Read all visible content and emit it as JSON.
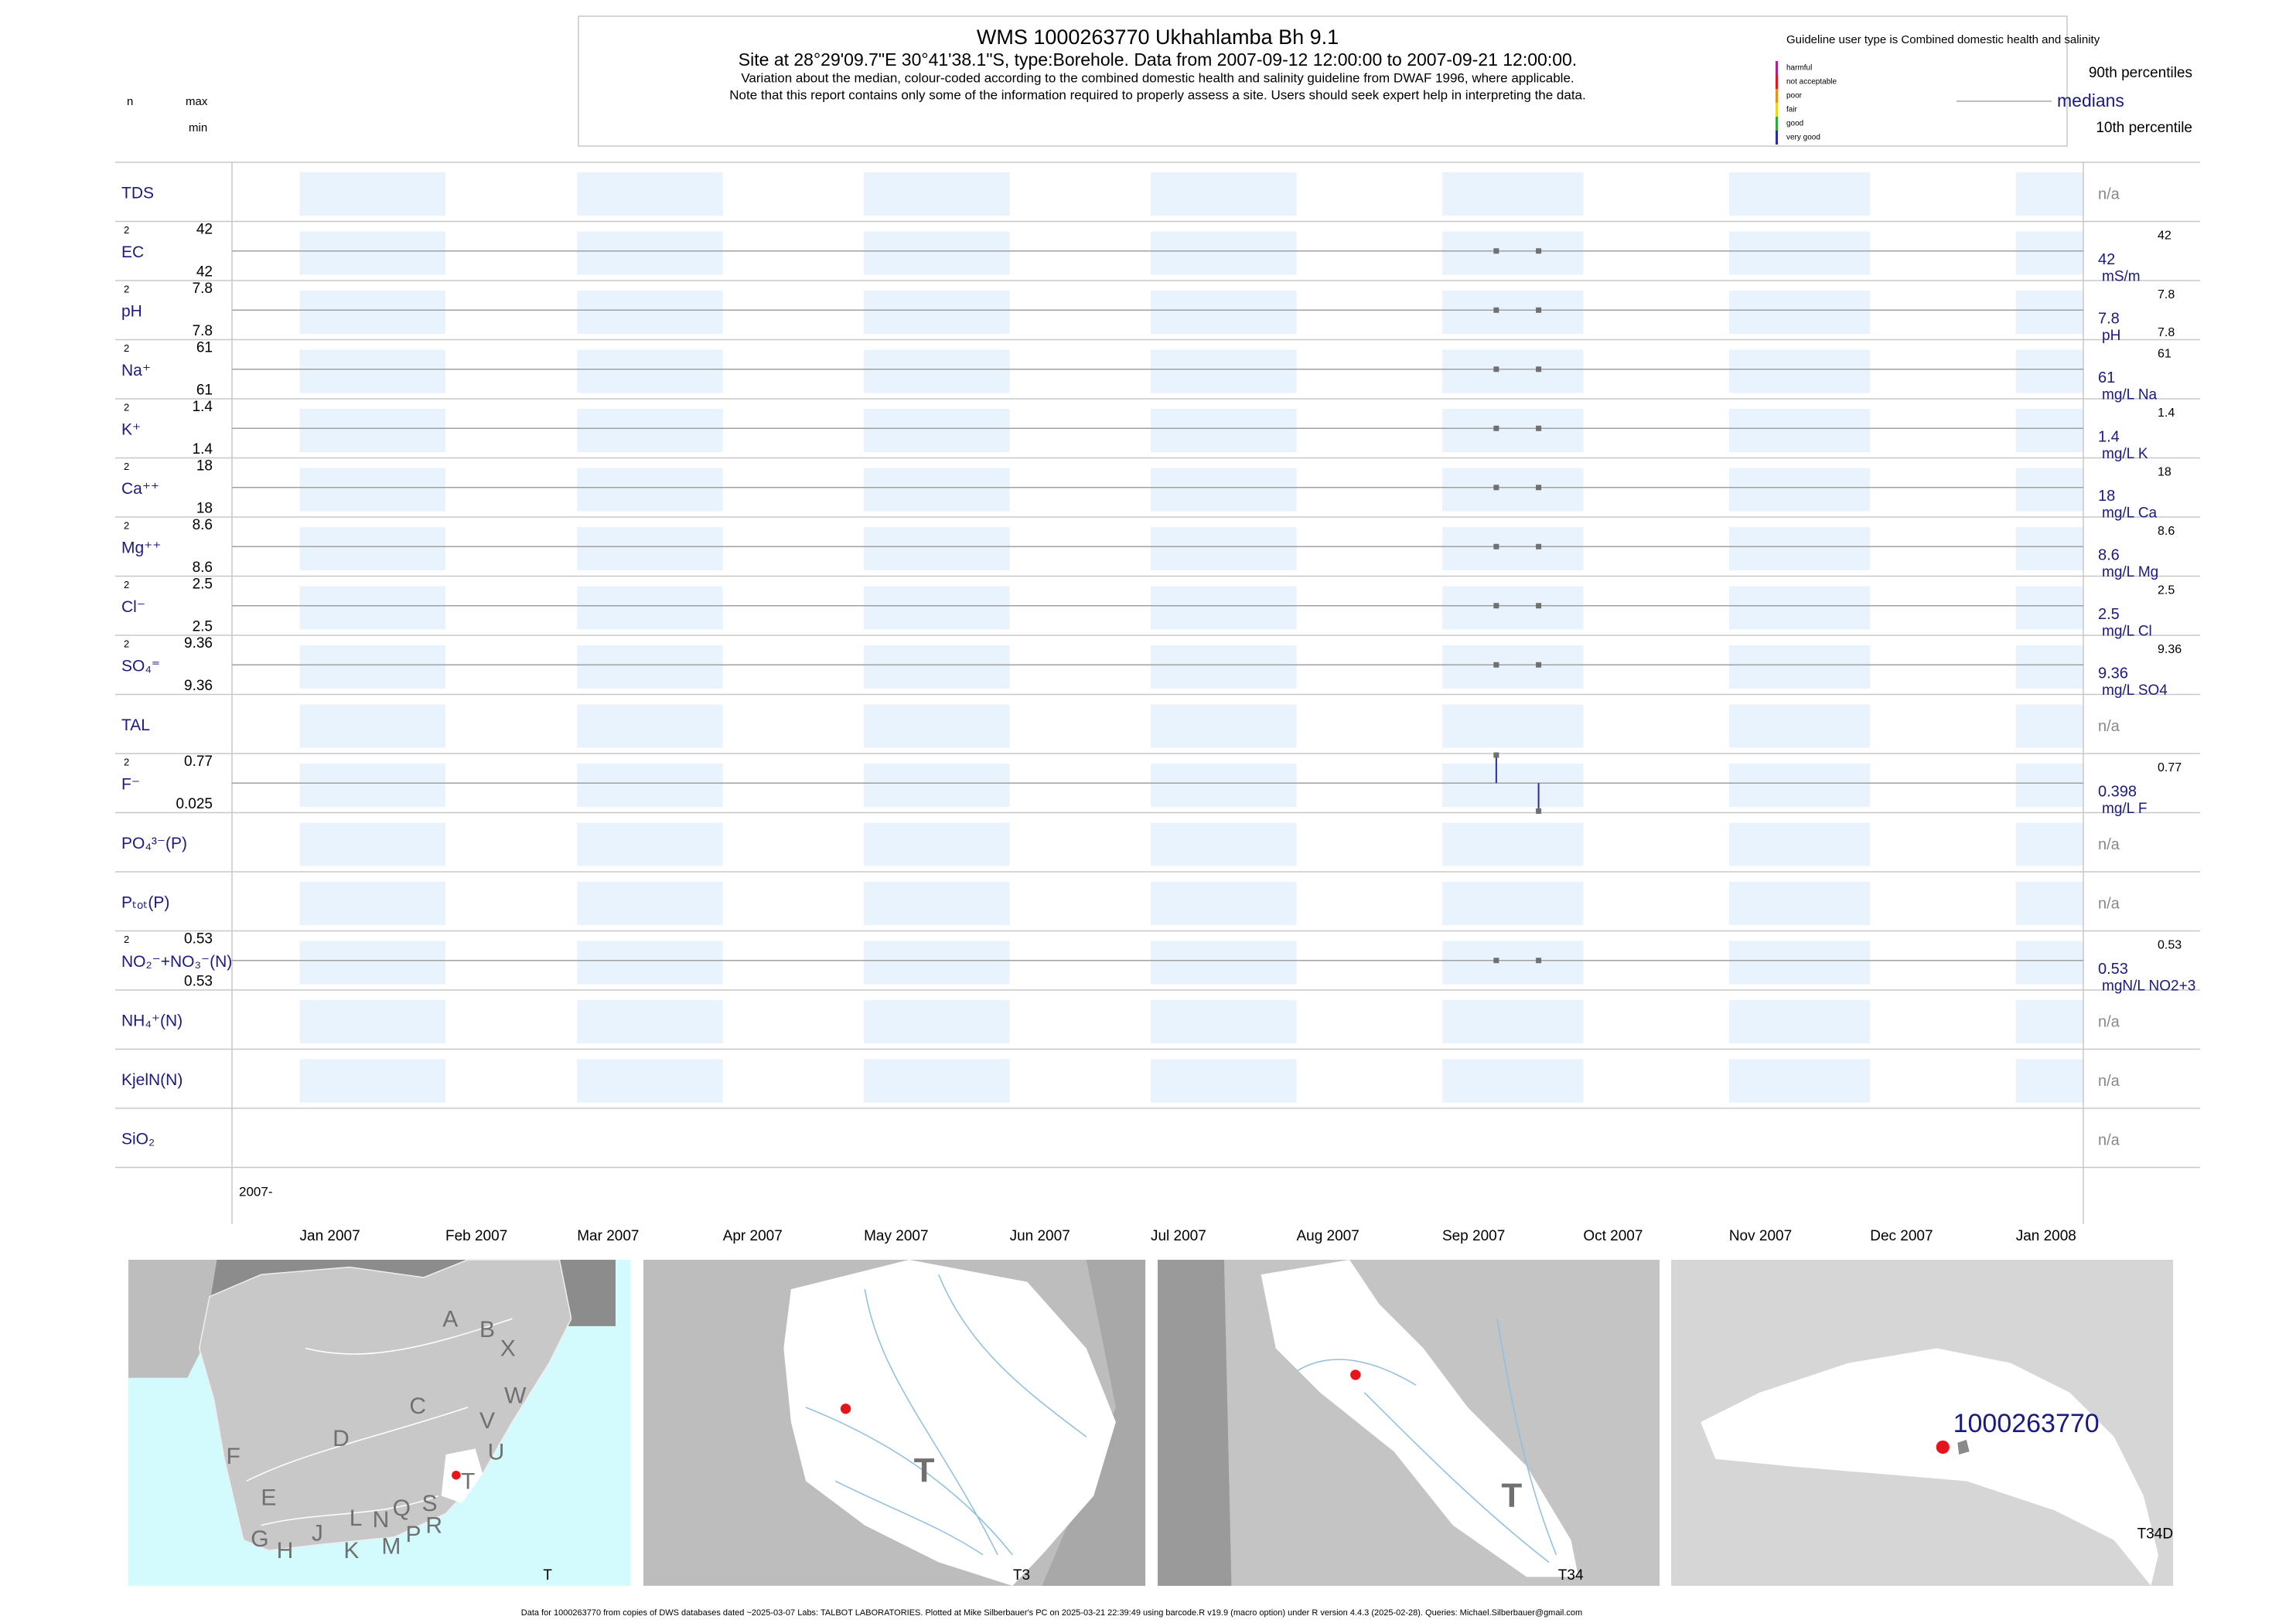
{
  "header": {
    "title": "WMS 1000263770  Ukhahlamba Bh 9.1",
    "subtitle": "Site at 28°29'09.7\"E 30°41'38.1\"S, type:Borehole.  Data from 2007-09-12 12:00:00 to 2007-09-21 12:00:00.",
    "note1": "Variation about the median,  colour-coded according to the combined domestic health and salinity guideline from DWAF 1996, where applicable.",
    "note2": "Note that this report contains only some of the information required to properly assess a site. Users should seek expert help in interpreting the data."
  },
  "column_heads": {
    "n": "n",
    "max": "max",
    "min": "min"
  },
  "legend": {
    "title": "Guideline user type is Combined domestic health and salinity",
    "classes": [
      {
        "label": "harmful",
        "color": "#b01f8e"
      },
      {
        "label": "not acceptable",
        "color": "#e8141c"
      },
      {
        "label": "poor",
        "color": "#f28b1a"
      },
      {
        "label": "fair",
        "color": "#e8d81a"
      },
      {
        "label": "good",
        "color": "#2ea83a"
      },
      {
        "label": "very good",
        "color": "#2b2ba0"
      }
    ],
    "p90": "90th percentiles",
    "median": "medians",
    "p10": "10th percentile"
  },
  "chart_data": {
    "type": "strip",
    "samples": [
      "2007-09-12 12:00:00",
      "2007-09-21 12:00:00"
    ],
    "xstart": "2007-",
    "xticks": [
      "Jan 2007",
      "Feb 2007",
      "Mar 2007",
      "Apr 2007",
      "May 2007",
      "Jun 2007",
      "Jul 2007",
      "Aug 2007",
      "Sep 2007",
      "Oct 2007",
      "Nov 2007",
      "Dec 2007",
      "Jan 2008"
    ],
    "rows": [
      {
        "name": "TDS",
        "status": "n/a"
      },
      {
        "name": "EC",
        "n": 2,
        "max": 42,
        "min": 42,
        "values": [
          42,
          42
        ],
        "median": 42,
        "unit": "mS/m",
        "p90": 42
      },
      {
        "name": "pH",
        "n": 2,
        "max": 7.8,
        "min": 7.8,
        "values": [
          7.8,
          7.8
        ],
        "median": 7.8,
        "unit": "pH",
        "p90": 7.8,
        "p10": 7.8
      },
      {
        "name": "Na⁺",
        "n": 2,
        "max": 61,
        "min": 61,
        "values": [
          61,
          61
        ],
        "median": 61,
        "unit": "mg/L Na",
        "p90": 61
      },
      {
        "name": "K⁺",
        "n": 2,
        "max": 1.4,
        "min": 1.4,
        "values": [
          1.4,
          1.4
        ],
        "median": 1.4,
        "unit": "mg/L K",
        "p90": 1.4
      },
      {
        "name": "Ca⁺⁺",
        "n": 2,
        "max": 18,
        "min": 18,
        "values": [
          18,
          18
        ],
        "median": 18,
        "unit": "mg/L Ca",
        "p90": 18
      },
      {
        "name": "Mg⁺⁺",
        "n": 2,
        "max": 8.6,
        "min": 8.6,
        "values": [
          8.6,
          8.6
        ],
        "median": 8.6,
        "unit": "mg/L Mg",
        "p90": 8.6
      },
      {
        "name": "Cl⁻",
        "n": 2,
        "max": 2.5,
        "min": 2.5,
        "values": [
          2.5,
          2.5
        ],
        "median": 2.5,
        "unit": "mg/L Cl",
        "p90": 2.5
      },
      {
        "name": "SO₄⁼",
        "n": 2,
        "max": 9.36,
        "min": 9.36,
        "values": [
          9.36,
          9.36
        ],
        "median": 9.36,
        "unit": "mg/L SO4",
        "p90": 9.36
      },
      {
        "name": "TAL",
        "status": "n/a"
      },
      {
        "name": "F⁻",
        "n": 2,
        "max": 0.77,
        "min": 0.025,
        "values": [
          0.77,
          0.025
        ],
        "median": 0.398,
        "unit": "mg/L F",
        "p90": 0.77
      },
      {
        "name": "PO₄³⁻(P)",
        "status": "n/a"
      },
      {
        "name": "Pₜₒₜ(P)",
        "status": "n/a"
      },
      {
        "name": "NO₂⁻+NO₃⁻(N)",
        "n": 2,
        "max": 0.53,
        "min": 0.53,
        "values": [
          0.53,
          0.53
        ],
        "median": 0.53,
        "unit": "mgN/L NO2+3",
        "p90": 0.53
      },
      {
        "name": "NH₄⁺(N)",
        "status": "n/a"
      },
      {
        "name": "KjelN(N)",
        "status": "n/a"
      },
      {
        "name": "SiO₂",
        "status": "n/a"
      }
    ]
  },
  "maps": [
    {
      "labels": [
        "A",
        "B",
        "X",
        "W",
        "C",
        "V",
        "U",
        "D",
        "T",
        "F",
        "E",
        "S",
        "R",
        "Q",
        "P",
        "N",
        "M",
        "L",
        "K",
        "J",
        "H",
        "G"
      ],
      "caption": "T"
    },
    {
      "labels": [
        "T"
      ],
      "caption": "T3"
    },
    {
      "labels": [
        "T"
      ],
      "caption": "T34"
    },
    {
      "labels": [
        "1000263770"
      ],
      "caption": "T34D"
    }
  ],
  "footer": "Data for 1000263770 from copies of DWS databases dated ~2025-03-07 Labs: TALBOT LABORATORIES. Plotted at Mike Silberbauer's PC on 2025-03-21 22:39:49 using barcode.R v19.9 (macro option) under R version 4.4.3 (2025-02-28). Queries: Michael.Silberbauer@gmail.com"
}
